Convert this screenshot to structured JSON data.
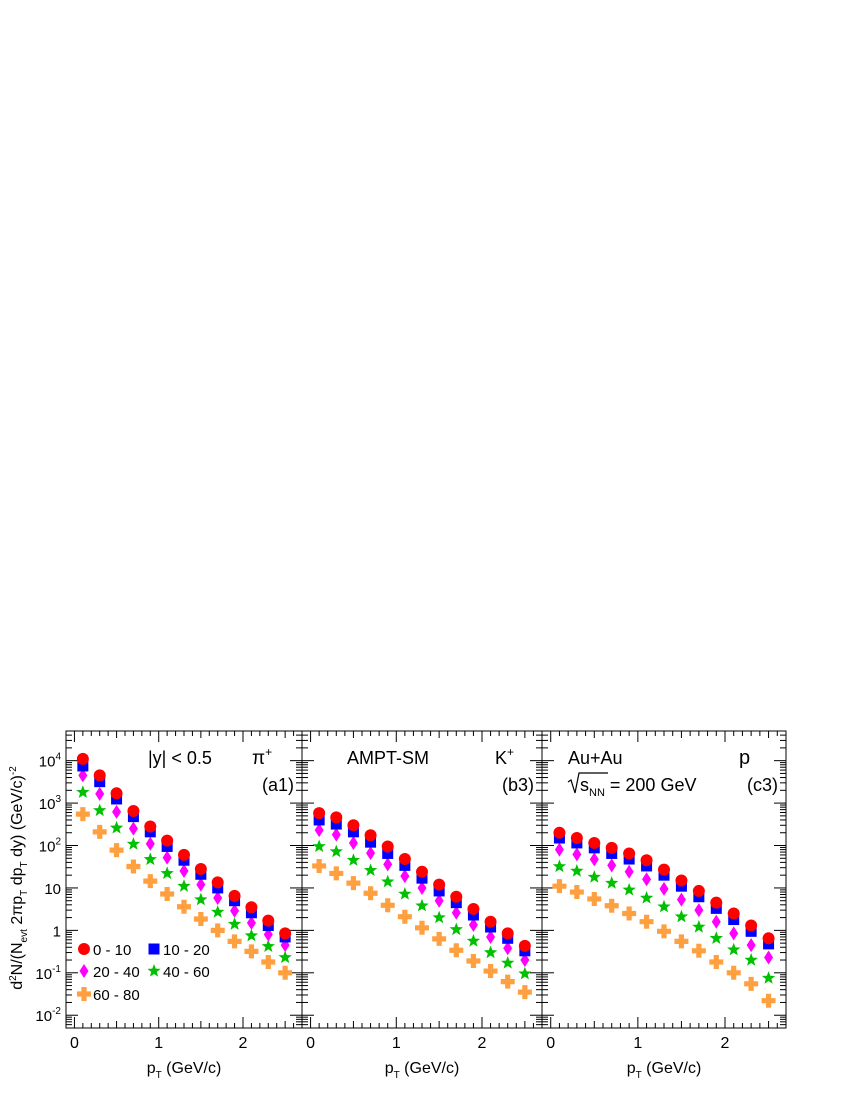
{
  "figure": {
    "y_axis_label": "d²N/(N_evt 2πp_T dp_T dy) (GeV/c)^-2",
    "x_axis_label": "p_T (GeV/c)"
  },
  "legend": [
    {
      "label": "0 - 10",
      "color": "#ff0000",
      "marker": "circle"
    },
    {
      "label": "10 - 20",
      "color": "#0000ff",
      "marker": "square"
    },
    {
      "label": "20 - 40",
      "color": "#ff00ff",
      "marker": "diamond"
    },
    {
      "label": "40 - 60",
      "color": "#00c000",
      "marker": "star"
    },
    {
      "label": "60 - 80",
      "color": "#ffa040",
      "marker": "cross"
    }
  ],
  "chart_data": [
    {
      "type": "scatter",
      "panel_label": "(a1)",
      "particle": "π+",
      "annotation": "|y| < 0.5",
      "xlabel": "p_T (GeV/c)",
      "ylabel": "d²N/(N_evt 2πp_T dp_T dy) (GeV/c)^-2",
      "y_scale": "log",
      "ylim": [
        0.005,
        50000
      ],
      "xlim": [
        -0.1,
        2.7
      ],
      "x_ticks": [
        0,
        1,
        2
      ],
      "y_tick_labels": [
        "10^-2",
        "10^-1",
        "1",
        "10",
        "10^2",
        "10^3",
        "10^4"
      ],
      "x": [
        0.1,
        0.3,
        0.5,
        0.7,
        0.9,
        1.1,
        1.3,
        1.5,
        1.7,
        1.9,
        2.1,
        2.3,
        2.5
      ],
      "series": [
        {
          "values": [
            11000,
            4500,
            1700,
            650,
            280,
            130,
            60,
            28,
            13.5,
            6.5,
            3.5,
            1.7,
            0.85
          ]
        },
        {
          "values": [
            7500,
            3200,
            1250,
            480,
            210,
            95,
            45,
            21,
            10,
            5,
            2.6,
            1.3,
            0.7
          ]
        },
        {
          "values": [
            4500,
            1650,
            620,
            250,
            110,
            52,
            25,
            12,
            5.8,
            2.9,
            1.5,
            0.8,
            0.45
          ]
        },
        {
          "values": [
            1800,
            670,
            260,
            108,
            47,
            22,
            11,
            5.3,
            2.7,
            1.4,
            0.75,
            0.42,
            0.23
          ]
        },
        {
          "values": [
            550,
            210,
            78,
            32,
            14.5,
            7.2,
            3.6,
            1.85,
            1.0,
            0.55,
            0.32,
            0.18,
            0.1
          ]
        }
      ]
    },
    {
      "type": "scatter",
      "panel_label": "(b3)",
      "particle": "K+",
      "annotation": "AMPT-SM",
      "xlabel": "p_T (GeV/c)",
      "y_scale": "log",
      "ylim": [
        0.005,
        50000
      ],
      "xlim": [
        -0.1,
        2.7
      ],
      "x_ticks": [
        0,
        1,
        2
      ],
      "x": [
        0.1,
        0.3,
        0.5,
        0.7,
        0.9,
        1.1,
        1.3,
        1.5,
        1.7,
        1.9,
        2.1,
        2.3,
        2.5
      ],
      "series": [
        {
          "values": [
            580,
            460,
            300,
            175,
            95,
            48,
            24,
            12,
            6.2,
            3.2,
            1.6,
            0.85,
            0.43
          ]
        },
        {
          "values": [
            400,
            320,
            210,
            120,
            65,
            34,
            17,
            8.5,
            4.5,
            2.3,
            1.2,
            0.65,
            0.33
          ]
        },
        {
          "values": [
            230,
            180,
            115,
            66,
            36,
            19,
            10,
            5.0,
            2.6,
            1.35,
            0.7,
            0.38,
            0.2
          ]
        },
        {
          "values": [
            95,
            72,
            45,
            26,
            14,
            7.2,
            3.8,
            2.0,
            1.05,
            0.56,
            0.3,
            0.17,
            0.095
          ]
        },
        {
          "values": [
            33,
            22,
            13,
            7.5,
            3.9,
            2.1,
            1.15,
            0.63,
            0.34,
            0.19,
            0.11,
            0.062,
            0.035
          ]
        }
      ]
    },
    {
      "type": "scatter",
      "panel_label": "(c3)",
      "particle": "p",
      "annotation_lines": [
        "Au+Au",
        "√s_NN = 200 GeV"
      ],
      "xlabel": "p_T (GeV/c)",
      "y_scale": "log",
      "ylim": [
        0.005,
        50000
      ],
      "xlim": [
        -0.1,
        2.7
      ],
      "x_ticks": [
        0,
        1,
        2
      ],
      "x": [
        0.1,
        0.3,
        0.5,
        0.7,
        0.9,
        1.1,
        1.3,
        1.5,
        1.7,
        1.9,
        2.1,
        2.3,
        2.5
      ],
      "series": [
        {
          "values": [
            200,
            150,
            115,
            88,
            65,
            45,
            27,
            15,
            8.5,
            4.5,
            2.5,
            1.3,
            0.65
          ]
        },
        {
          "values": [
            150,
            115,
            88,
            65,
            48,
            33,
            20,
            11,
            6.2,
            3.3,
            1.8,
            0.95,
            0.48
          ]
        },
        {
          "values": [
            80,
            62,
            47,
            34,
            24,
            16,
            9.5,
            5.3,
            3.0,
            1.6,
            0.85,
            0.45,
            0.23
          ]
        },
        {
          "values": [
            32,
            25,
            18,
            13,
            9.0,
            5.8,
            3.6,
            2.1,
            1.2,
            0.65,
            0.35,
            0.2,
            0.075
          ]
        },
        {
          "values": [
            11,
            8.0,
            5.5,
            3.8,
            2.5,
            1.6,
            0.95,
            0.55,
            0.33,
            0.18,
            0.1,
            0.055,
            0.022
          ]
        }
      ]
    }
  ]
}
